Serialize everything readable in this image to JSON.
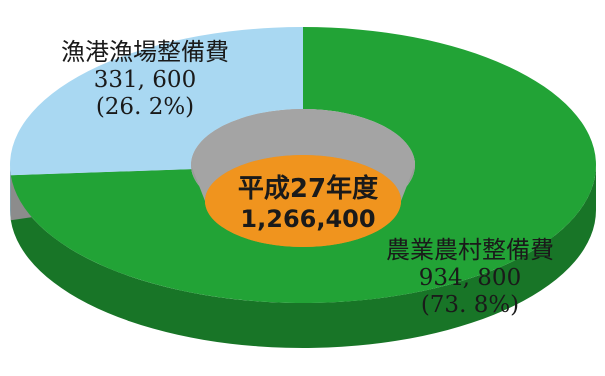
{
  "chart_data": {
    "type": "pie",
    "style": "3d-donut",
    "center": {
      "title": "平成27年度",
      "total": "1,266,400"
    },
    "slices": [
      {
        "label": "農業農村整備費",
        "value": 934800,
        "value_text": "934, 800",
        "percent_text": "(73. 8%)",
        "percent": 73.8,
        "color": "#22a336"
      },
      {
        "label": "漁港漁場整備費",
        "value": 331600,
        "value_text": "331, 600",
        "percent_text": "(26. 2%)",
        "percent": 26.2,
        "color": "#a9d8f2"
      }
    ],
    "hole_color": "#f0941e"
  }
}
